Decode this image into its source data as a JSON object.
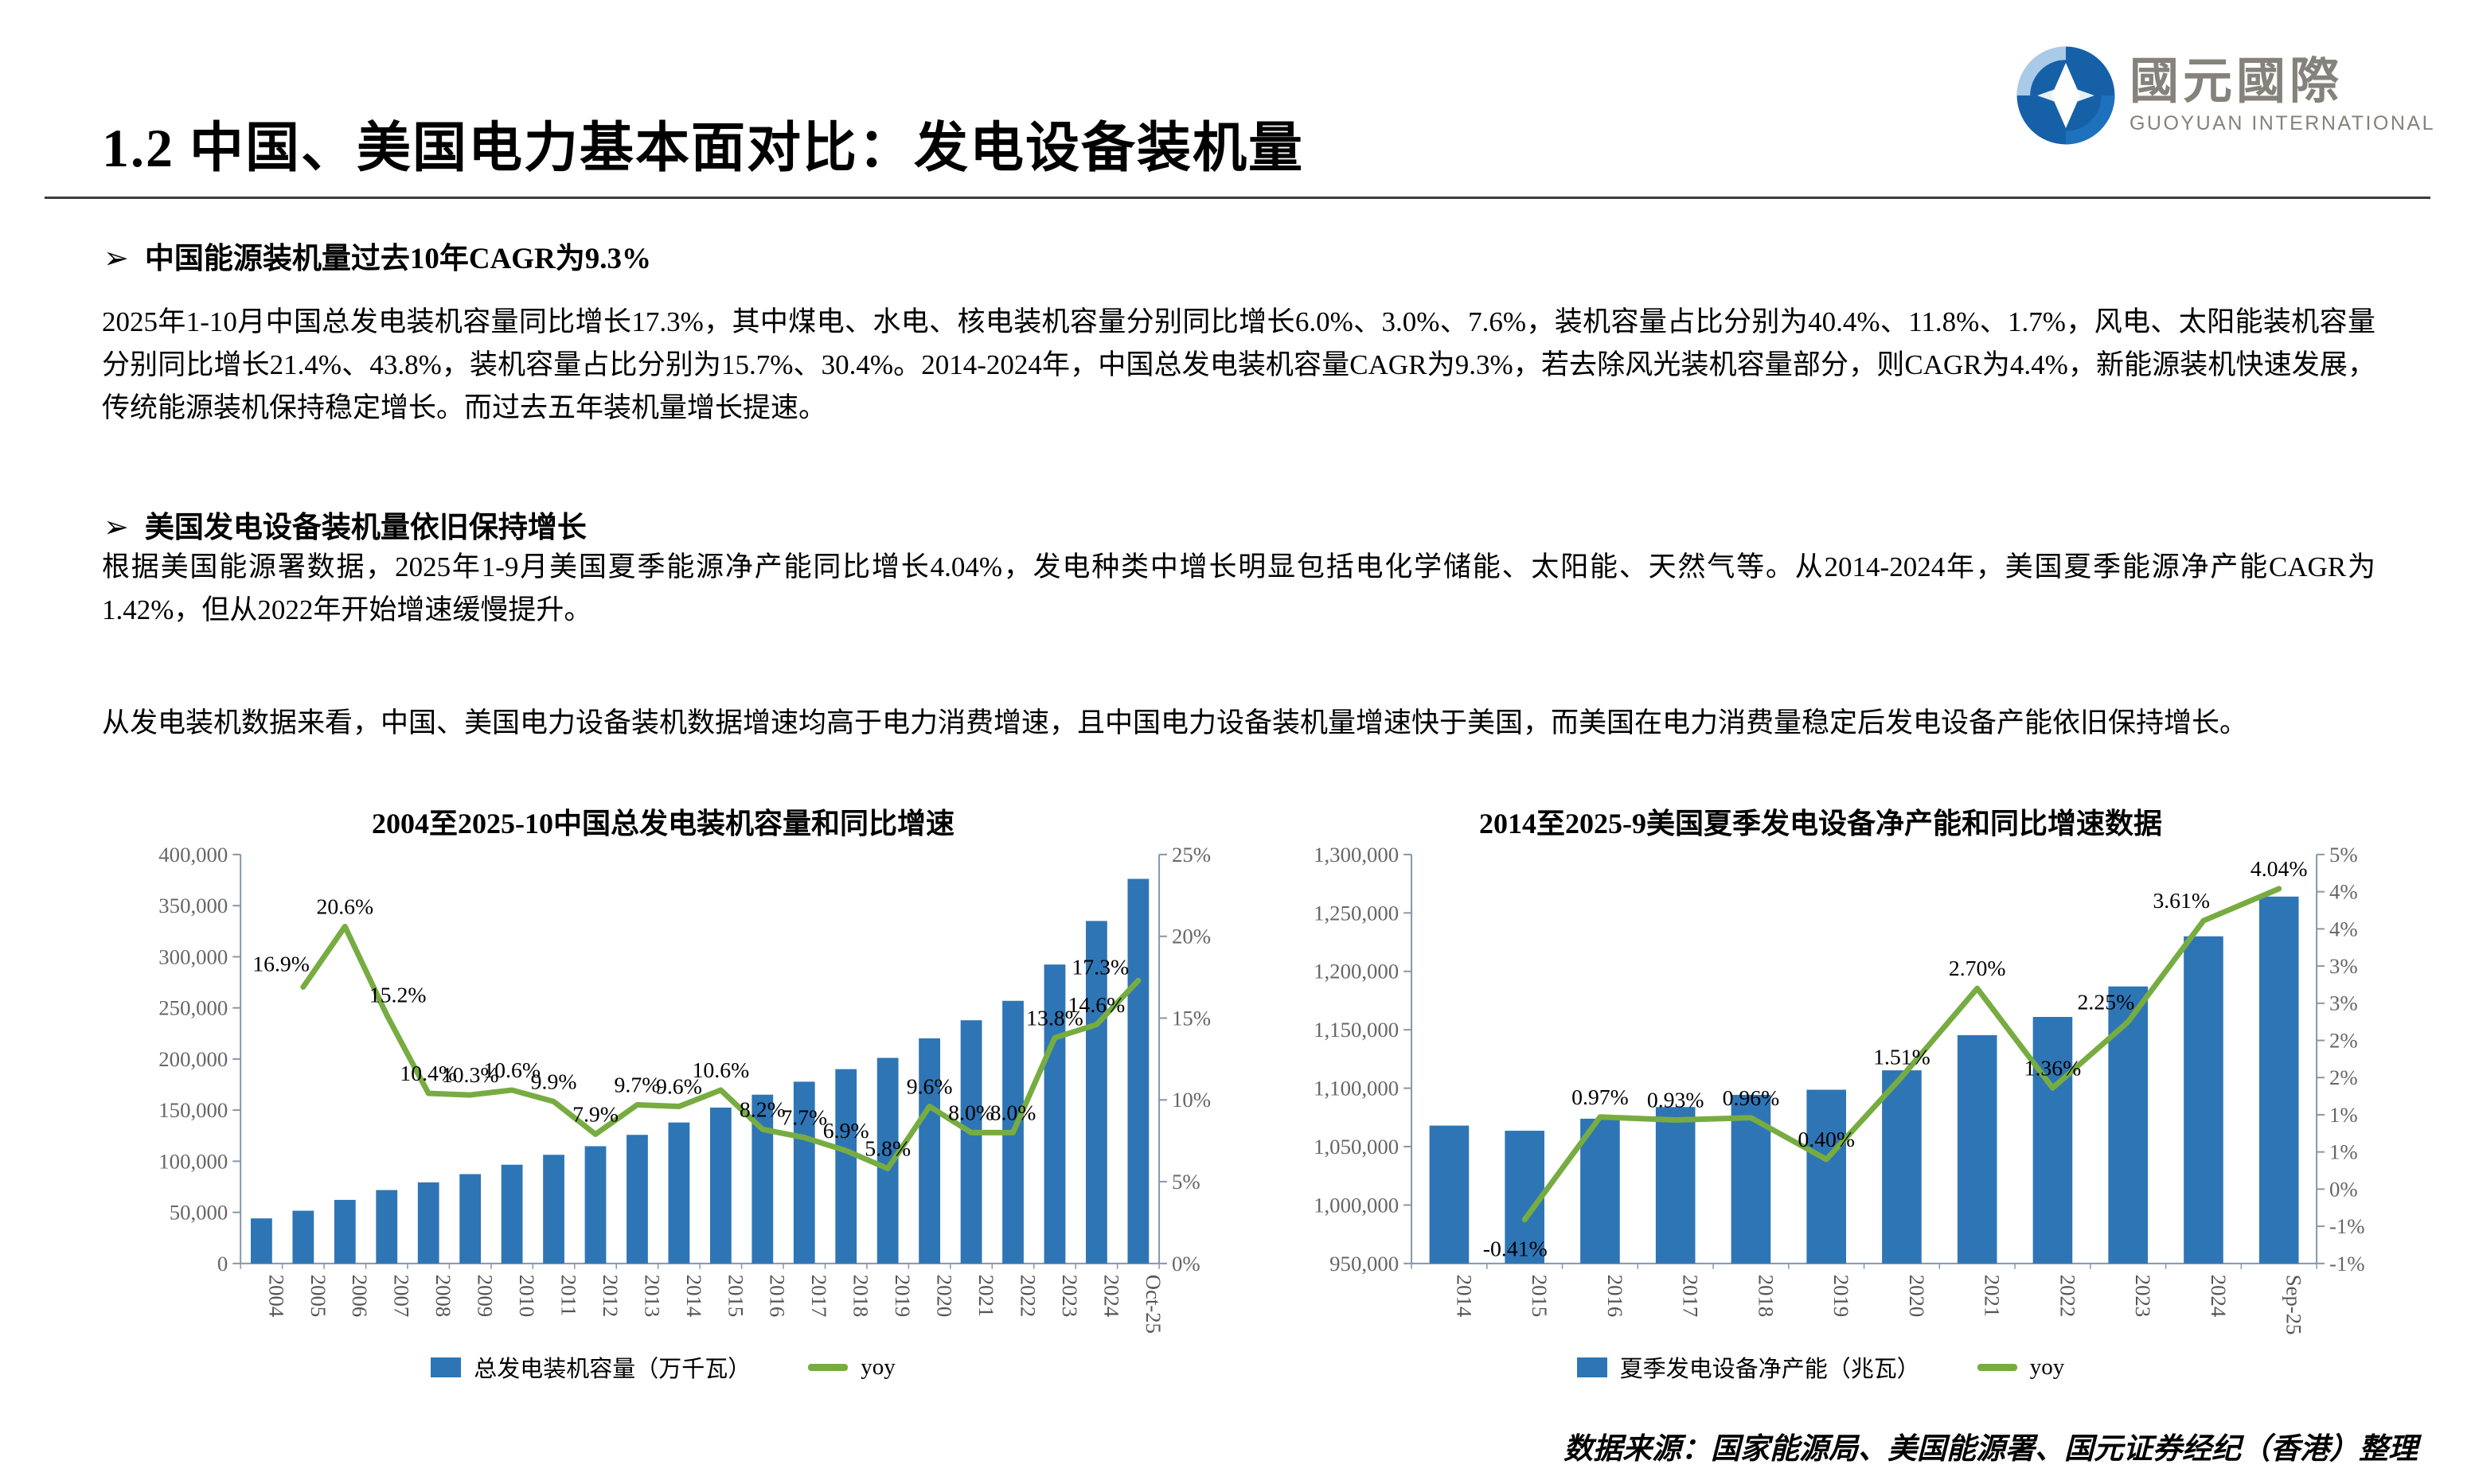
{
  "page": {
    "title": "1.2 中国、美国电力基本面对比：发电设备装机量",
    "bullet_marker": "➢",
    "logo": {
      "cn": "國元國際",
      "en": "GUOYUAN INTERNATIONAL"
    },
    "source_note": "数据来源：国家能源局、美国能源署、国元证券经纪（香港）整理"
  },
  "sections": [
    {
      "bullet": "中国能源装机量过去10年CAGR为9.3%",
      "body": "2025年1-10月中国总发电装机容量同比增长17.3%，其中煤电、水电、核电装机容量分别同比增长6.0%、3.0%、7.6%，装机容量占比分别为40.4%、11.8%、1.7%，风电、太阳能装机容量分别同比增长21.4%、43.8%，装机容量占比分别为15.7%、30.4%。2014-2024年，中国总发电装机容量CAGR为9.3%，若去除风光装机容量部分，则CAGR为4.4%，新能源装机快速发展，传统能源装机保持稳定增长。而过去五年装机量增长提速。"
    },
    {
      "bullet": "美国发电设备装机量依旧保持增长",
      "body": "根据美国能源署数据，2025年1-9月美国夏季能源净产能同比增长4.04%，发电种类中增长明显包括电化学储能、太阳能、天然气等。从2014-2024年，美国夏季能源净产能CAGR为1.42%，但从2022年开始增速缓慢提升。"
    }
  ],
  "closing_paragraph": "从发电装机数据来看，中国、美国电力设备装机数据增速均高于电力消费增速，且中国电力设备装机量增速快于美国，而美国在电力消费量稳定后发电设备产能依旧保持增长。",
  "colors": {
    "bar": "#2E75B6",
    "line": "#77AC41",
    "axis": "#8496AD"
  },
  "chart_data": [
    {
      "type": "bar+line",
      "title": "2004至2025-10中国总发电装机容量和同比增速",
      "categories": [
        "2004",
        "2005",
        "2006",
        "2007",
        "2008",
        "2009",
        "2010",
        "2011",
        "2012",
        "2013",
        "2014",
        "2015",
        "2016",
        "2017",
        "2018",
        "2019",
        "2020",
        "2021",
        "2022",
        "2023",
        "2024",
        "Oct-25"
      ],
      "series": [
        {
          "name": "总发电装机容量（万千瓦）",
          "kind": "bar",
          "axis": "left",
          "values": [
            44100,
            51600,
            62200,
            71800,
            79300,
            87400,
            96600,
            106300,
            114700,
            125800,
            137900,
            152500,
            165100,
            177800,
            190100,
            201100,
            220200,
            237900,
            256900,
            292400,
            335000,
            376200
          ]
        },
        {
          "name": "yoy",
          "kind": "line",
          "axis": "right",
          "values": [
            null,
            16.9,
            20.6,
            15.2,
            10.4,
            10.3,
            10.6,
            9.9,
            7.9,
            9.7,
            9.6,
            10.6,
            8.2,
            7.7,
            6.9,
            5.8,
            9.6,
            8.0,
            8.0,
            13.8,
            14.6,
            17.3
          ]
        }
      ],
      "point_labels": [
        "",
        "16.9%",
        "20.6%",
        "15.2%",
        "10.4%",
        "10.3%",
        "10.6%",
        "9.9%",
        "7.9%",
        "9.7%",
        "9.6%",
        "10.6%",
        "8.2%",
        "7.7%",
        "6.9%",
        "5.8%",
        "9.6%",
        "8.0%",
        "8.0%",
        "13.8%",
        "14.6%",
        "17.3%"
      ],
      "left_axis": {
        "min": 0,
        "max": 400000,
        "ticks_top_to_bottom": [
          "400,000",
          "350,000",
          "300,000",
          "250,000",
          "200,000",
          "150,000",
          "100,000",
          "50,000",
          "0"
        ]
      },
      "right_axis": {
        "min": 0,
        "max": 25,
        "ticks_top_to_bottom": [
          "25%",
          "20%",
          "15%",
          "10%",
          "5%",
          "0%"
        ]
      },
      "grid": false,
      "legend_position": "bottom"
    },
    {
      "type": "bar+line",
      "title": "2014至2025-9美国夏季发电设备净产能和同比增速数据",
      "categories": [
        "2014",
        "2015",
        "2016",
        "2017",
        "2018",
        "2019",
        "2020",
        "2021",
        "2022",
        "2023",
        "2024",
        "Sep-25"
      ],
      "series": [
        {
          "name": "夏季发电设备净产能（兆瓦）",
          "kind": "bar",
          "axis": "left",
          "values": [
            1068000,
            1063600,
            1073900,
            1083900,
            1094300,
            1098700,
            1115300,
            1145400,
            1161000,
            1187100,
            1230000,
            1264000
          ]
        },
        {
          "name": "yoy",
          "kind": "line",
          "axis": "right",
          "values": [
            null,
            -0.41,
            0.97,
            0.93,
            0.96,
            0.4,
            1.51,
            2.7,
            1.36,
            2.25,
            3.61,
            4.04
          ]
        }
      ],
      "point_labels": [
        "",
        "-0.41%",
        "0.97%",
        "0.93%",
        "0.96%",
        "0.40%",
        "1.51%",
        "2.70%",
        "1.36%",
        "2.25%",
        "3.61%",
        "4.04%"
      ],
      "left_axis": {
        "min": 950000,
        "max": 1300000,
        "ticks_top_to_bottom": [
          "1,300,000",
          "1,250,000",
          "1,200,000",
          "1,150,000",
          "1,100,000",
          "1,050,000",
          "1,000,000",
          "950,000"
        ]
      },
      "right_axis": {
        "min": -1,
        "max": 4.5,
        "ticks_top_to_bottom": [
          "5%",
          "4%",
          "4%",
          "3%",
          "3%",
          "2%",
          "2%",
          "1%",
          "1%",
          "0%",
          "-1%",
          "-1%"
        ]
      },
      "grid": false,
      "legend_position": "bottom"
    }
  ]
}
